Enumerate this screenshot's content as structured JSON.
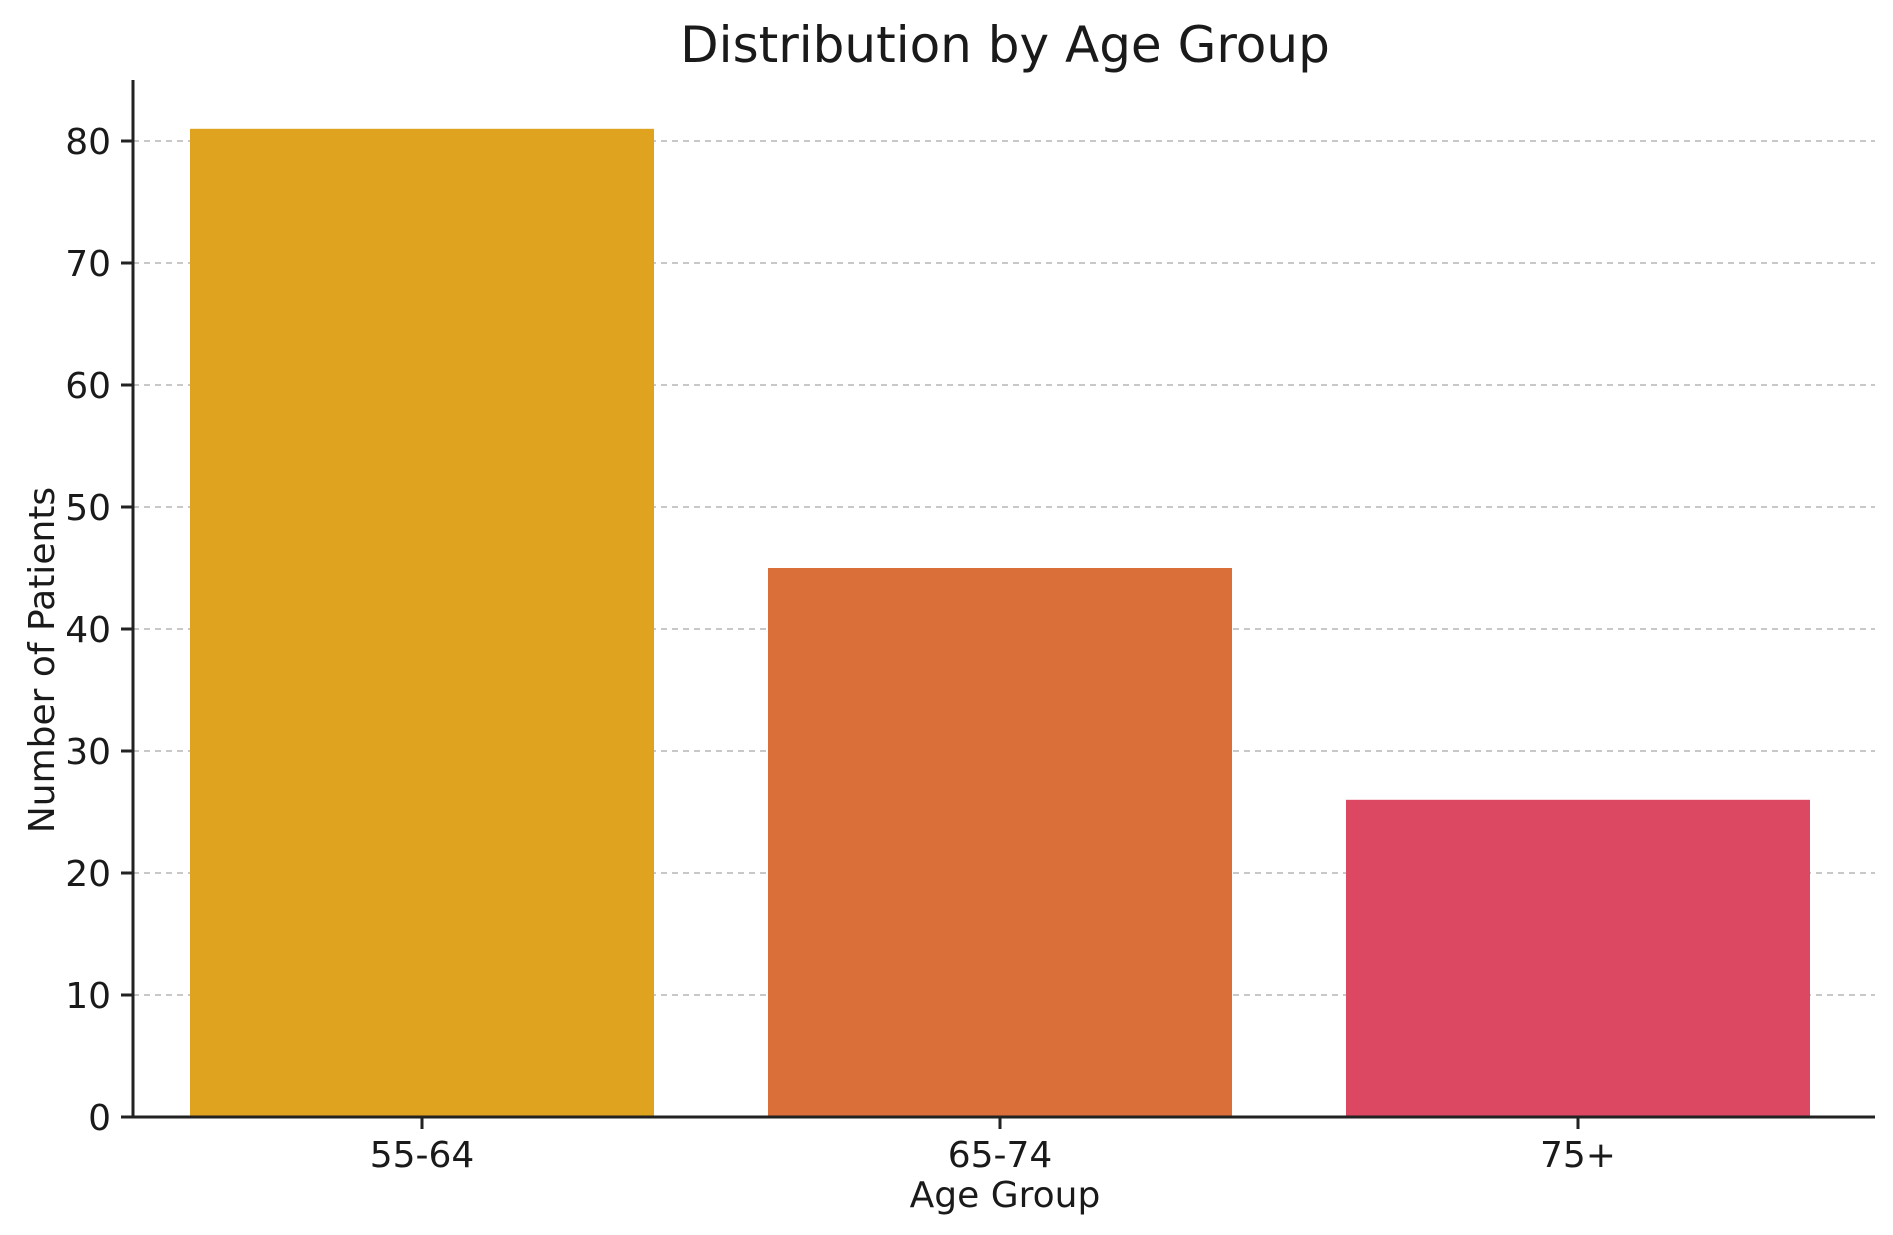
{
  "chart_data": {
    "type": "bar",
    "title": "Distribution by Age Group",
    "xlabel": "Age Group",
    "ylabel": "Number of Patients",
    "categories": [
      "55-64",
      "65-74",
      "75+"
    ],
    "values": [
      81,
      45,
      26
    ],
    "colors": [
      "#DFA320",
      "#DB6F3A",
      "#DC4862"
    ],
    "ylim": [
      0,
      85
    ],
    "yticks": [
      0,
      10,
      20,
      30,
      40,
      50,
      60,
      70,
      80
    ],
    "grid": true,
    "grid_axis": "y",
    "legend": "none"
  }
}
